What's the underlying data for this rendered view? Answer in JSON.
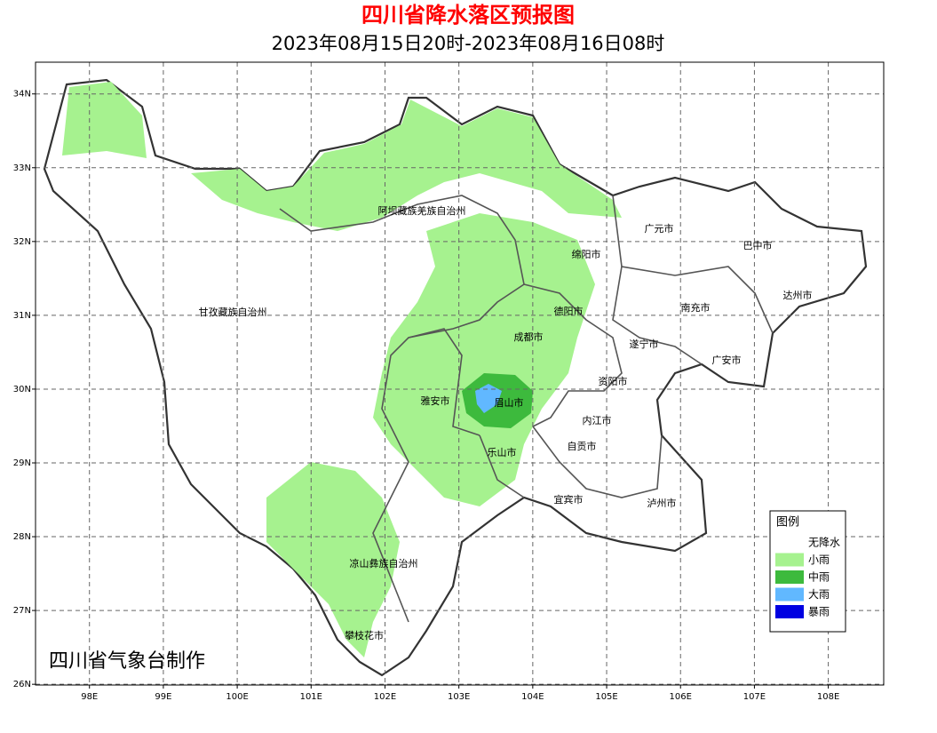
{
  "title": "四川省降水落区预报图",
  "subtitle": "2023年08月15日20时-2023年08月16日08时",
  "map": {
    "xlim": [
      97.27,
      108.75
    ],
    "ylim": [
      25.99,
      34.43
    ],
    "xticks": [
      {
        "value": 98,
        "label": "98E"
      },
      {
        "value": 99,
        "label": "99E"
      },
      {
        "value": 100,
        "label": "100E"
      },
      {
        "value": 101,
        "label": "101E"
      },
      {
        "value": 102,
        "label": "102E"
      },
      {
        "value": 103,
        "label": "103E"
      },
      {
        "value": 104,
        "label": "104E"
      },
      {
        "value": 105,
        "label": "105E"
      },
      {
        "value": 106,
        "label": "106E"
      },
      {
        "value": 107,
        "label": "107E"
      },
      {
        "value": 108,
        "label": "108E"
      }
    ],
    "yticks": [
      {
        "value": 26,
        "label": "26N"
      },
      {
        "value": 27,
        "label": "27N"
      },
      {
        "value": 28,
        "label": "28N"
      },
      {
        "value": 29,
        "label": "29N"
      },
      {
        "value": 30,
        "label": "30N"
      },
      {
        "value": 31,
        "label": "31N"
      },
      {
        "value": 32,
        "label": "32N"
      },
      {
        "value": 33,
        "label": "33N"
      },
      {
        "value": 34,
        "label": "34N"
      }
    ],
    "grid": true,
    "cities": [
      "阿坝藏族羌族自治州",
      "甘孜藏族自治州",
      "凉山彝族自治州",
      "攀枝花市",
      "雅安市",
      "眉山市",
      "乐山市",
      "成都市",
      "德阳市",
      "绵阳市",
      "广元市",
      "巴中市",
      "达州市",
      "南充市",
      "遂宁市",
      "广安市",
      "资阳市",
      "内江市",
      "自贡市",
      "宜宾市",
      "泸州市"
    ]
  },
  "legend": {
    "title": "图例",
    "items": [
      {
        "label": "无降水",
        "color": "#ffffff"
      },
      {
        "label": "小雨",
        "color": "#a6f28f"
      },
      {
        "label": "中雨",
        "color": "#3dba3d"
      },
      {
        "label": "大雨",
        "color": "#61b8ff"
      },
      {
        "label": "暴雨",
        "color": "#0000e1"
      }
    ]
  },
  "footer": "四川省气象台制作"
}
